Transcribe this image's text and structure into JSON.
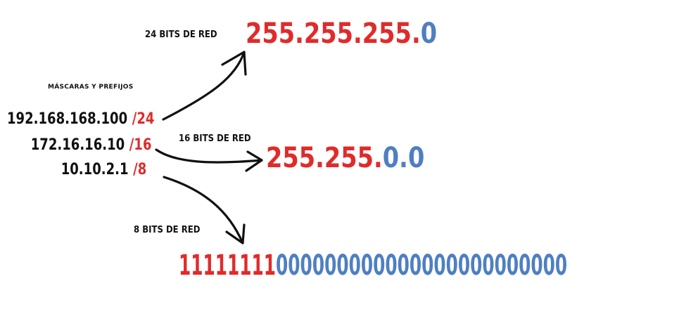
{
  "heading": "MÁSCARAS Y PREFIJOS",
  "ip_rows": [
    {
      "address": "192.168.168.100",
      "prefix": "/24"
    },
    {
      "address": "172.16.16.10",
      "prefix": "/16"
    },
    {
      "address": "10.10.2.1",
      "prefix": "/8"
    }
  ],
  "bits_labels": {
    "b24": "24 BITS DE RED",
    "b16": "16 BITS DE RED",
    "b8": "8 BITS DE RED"
  },
  "masks": {
    "m24": {
      "network": "255.255.255.",
      "host": "0"
    },
    "m16": {
      "network": "255.255.",
      "host": "0.0"
    },
    "m8": {
      "network": "11111111",
      "host": "000000000000000000000000"
    }
  },
  "colors": {
    "network": "#e02b2b",
    "host": "#4f7fc1",
    "text": "#111111"
  }
}
